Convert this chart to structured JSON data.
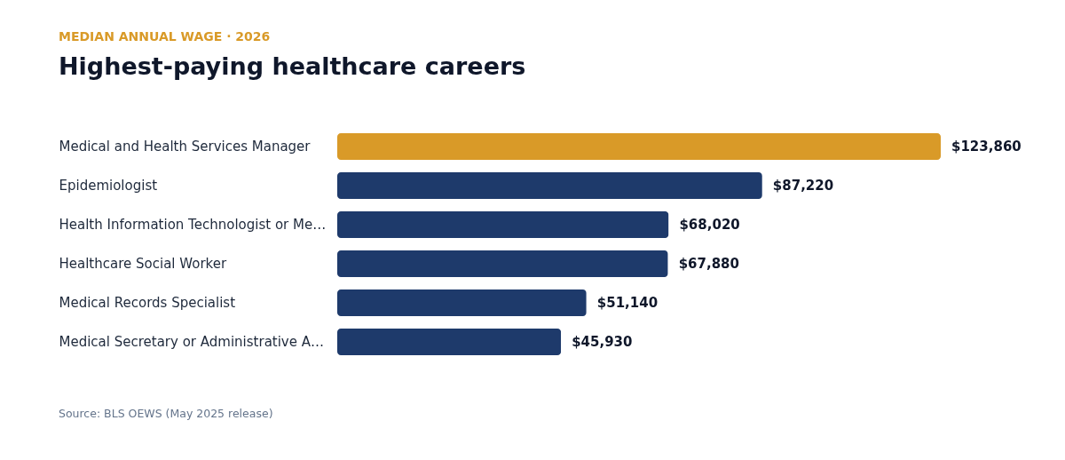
{
  "chart_data": {
    "type": "bar",
    "orientation": "horizontal",
    "subtitle": "MEDIAN ANNUAL WAGE · 2026",
    "title": "Highest-paying healthcare careers",
    "categories": [
      "Medical and Health Services Manager",
      "Epidemiologist",
      "Health Information Technologist or Me…",
      "Healthcare Social Worker",
      "Medical Records Specialist",
      "Medical Secretary or Administrative A…"
    ],
    "values": [
      123860,
      87220,
      68020,
      67880,
      51140,
      45930
    ],
    "colors": [
      "#d99a28",
      "#1e3a6b",
      "#1e3a6b",
      "#1e3a6b",
      "#1e3a6b",
      "#1e3a6b"
    ],
    "value_labels": [
      "$123,860",
      "$87,220",
      "$68,020",
      "$67,880",
      "$51,140",
      "$45,930"
    ],
    "annotations": [
      "Source: BLS OEWS (May 2025 release)"
    ]
  }
}
